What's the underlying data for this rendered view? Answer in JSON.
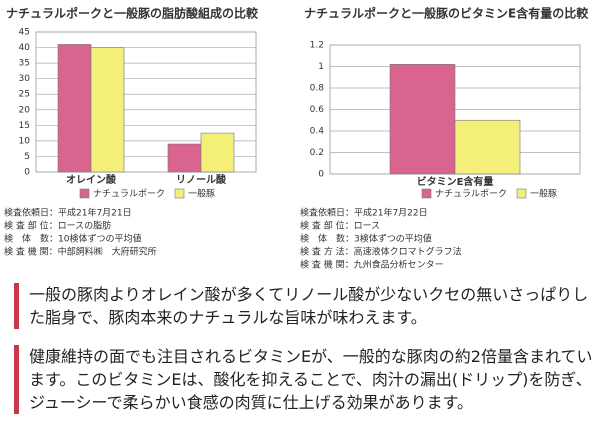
{
  "chart_data": [
    {
      "type": "bar",
      "title": "ナチュラルポークと一般豚の脂肪酸組成の比較",
      "categories": [
        "オレイン酸",
        "リノール酸"
      ],
      "series": [
        {
          "name": "ナチュラルポーク",
          "color": "#d9648f",
          "values": [
            41,
            9
          ]
        },
        {
          "name": "一般豚",
          "color": "#f4ef78",
          "values": [
            40,
            12.5
          ]
        }
      ],
      "ylim": [
        0,
        45
      ],
      "yticks": [
        0,
        5,
        10,
        15,
        20,
        25,
        30,
        35,
        40,
        45
      ],
      "grid": true
    },
    {
      "type": "bar",
      "title": "ナチュラルポークと一般豚のビタミンE含有量の比較",
      "categories": [
        "ビタミンE含有量"
      ],
      "series": [
        {
          "name": "ナチュラルポーク",
          "color": "#d9648f",
          "values": [
            1.02
          ]
        },
        {
          "name": "一般豚",
          "color": "#f4ef78",
          "values": [
            0.5
          ]
        }
      ],
      "ylim": [
        0,
        1.2
      ],
      "yticks": [
        0,
        0.2,
        0.4,
        0.6,
        0.8,
        1,
        1.2
      ],
      "grid": true
    }
  ],
  "notes": [
    [
      "検査依頼日：平成21年7月21日",
      "検 査 部 位：ロースの脂肪",
      "検　体　数：10検体ずつの平均値",
      "検 査 機 関：中部飼料㈱　大府研究所"
    ],
    [
      "検査依頼日：平成21年7月22日",
      "検 査 部 位：ロース",
      "検　体　数：3検体ずつの平均値",
      "検 査 方 法：高速液体クロマトグラフ法",
      "検 査 機 関：九州食品分析センター"
    ]
  ],
  "paragraphs": [
    "一般の豚肉よりオレイン酸が多くてリノール酸が少ないクセの無いさっぱりした脂身で、豚肉本来のナチュラルな旨味が味わえます。",
    "健康維持の面でも注目されるビタミンEが、一般的な豚肉の約2倍量含まれています。このビタミンEは、酸化を抑えることで、肉汁の漏出(ドリップ)を防ぎ、ジューシーで柔らかい食感の肉質に仕上げる効果があります。"
  ]
}
